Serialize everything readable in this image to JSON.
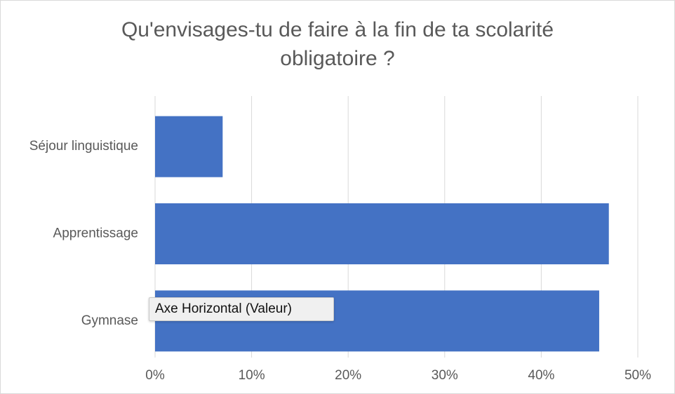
{
  "chart_data": {
    "type": "bar",
    "orientation": "horizontal",
    "title": "Qu'envisages-tu de faire à la fin de ta scolarité obligatoire ?",
    "categories": [
      "Séjour linguistique",
      "Apprentissage",
      "Gymnase"
    ],
    "values": [
      7,
      47,
      46
    ],
    "color": "#4472c4",
    "xlim": [
      0,
      50
    ],
    "xticks": [
      {
        "value": 0,
        "label": "0%"
      },
      {
        "value": 10,
        "label": "10%"
      },
      {
        "value": 20,
        "label": "20%"
      },
      {
        "value": 30,
        "label": "30%"
      },
      {
        "value": 40,
        "label": "40%"
      },
      {
        "value": 50,
        "label": "50%"
      }
    ],
    "grid": true,
    "tooltip": "Axe Horizontal (Valeur)"
  }
}
